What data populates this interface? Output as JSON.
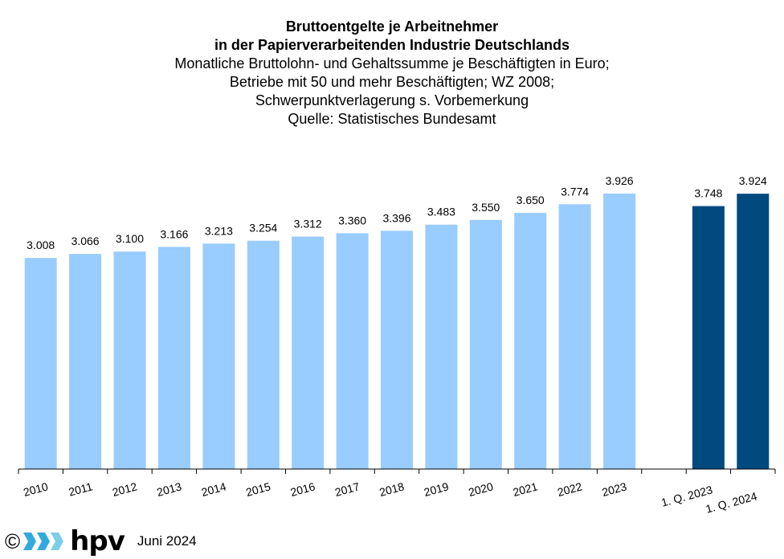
{
  "chart_data": {
    "type": "bar",
    "title": "Bruttoentgelte je Arbeitnehmer",
    "title_line2": "in der Papierverarbeitenden Industrie Deutschlands",
    "subtitle_lines": [
      "Monatliche Bruttolohn- und Gehaltssumme je Beschäftigten in Euro;",
      "Betriebe mit 50 und mehr Beschäftigten; WZ 2008;",
      "Schwerpunktverlagerung s. Vorbemerkung",
      "Quelle: Statistisches Bundesamt"
    ],
    "categories": [
      "2010",
      "2011",
      "2012",
      "2013",
      "2014",
      "2015",
      "2016",
      "2017",
      "2018",
      "2019",
      "2020",
      "2021",
      "2022",
      "2023",
      "",
      "1. Q. 2023",
      "1. Q. 2024"
    ],
    "values": [
      3008,
      3066,
      3100,
      3166,
      3213,
      3254,
      3312,
      3360,
      3396,
      3483,
      3550,
      3650,
      3774,
      3926,
      null,
      3748,
      3924
    ],
    "value_labels": [
      "3.008",
      "3.066",
      "3.100",
      "3.166",
      "3.213",
      "3.254",
      "3.312",
      "3.360",
      "3.396",
      "3.483",
      "3.550",
      "3.650",
      "3.774",
      "3.926",
      "",
      "3.748",
      "3.924"
    ],
    "colors": {
      "annual": "#99ccff",
      "quarterly": "#004a80",
      "axis": "#000000"
    },
    "bar_kind": [
      "annual",
      "annual",
      "annual",
      "annual",
      "annual",
      "annual",
      "annual",
      "annual",
      "annual",
      "annual",
      "annual",
      "annual",
      "annual",
      "annual",
      "none",
      "quarterly",
      "quarterly"
    ],
    "ylim": [
      0,
      4000
    ],
    "axes_visible": {
      "y": false,
      "x": true
    },
    "grid": false,
    "legend": "none"
  },
  "footer": {
    "copyright": "©",
    "logo_text": "hpv",
    "logo_colors": [
      "#33aadd",
      "#7ccfe9"
    ],
    "date": "Juni 2024"
  }
}
